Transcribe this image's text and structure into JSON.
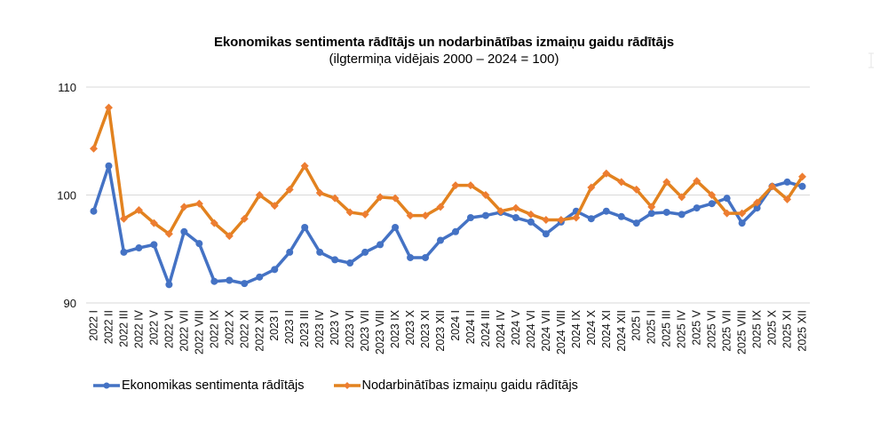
{
  "chart_data": {
    "type": "line",
    "title": "Ekonomikas sentimenta rādītājs un nodarbinātības izmaiņu gaidu rādītājs",
    "subtitle": "(ilgtermiņa vidējais 2000 – 2024 = 100)",
    "xlabel": "",
    "ylabel": "",
    "ylim": [
      90,
      110
    ],
    "yticks": [
      "90",
      "100",
      "110"
    ],
    "grid": true,
    "legend_position": "bottom",
    "categories": [
      "2022 I",
      "2022 II",
      "2022 III",
      "2022 IV",
      "2022 V",
      "2022 VI",
      "2022 VII",
      "2022 VIII",
      "2022 IX",
      "2022 X",
      "2022 XI",
      "2022 XII",
      "2023 I",
      "2023 II",
      "2023 III",
      "2023 IV",
      "2023 V",
      "2023 VI",
      "2023 VII",
      "2023 VIII",
      "2023 IX",
      "2023 X",
      "2023 XI",
      "2023 XII",
      "2024 I",
      "2024 II",
      "2024 III",
      "2024 IV",
      "2024 V",
      "2024 VI",
      "2024 VII",
      "2024 VIII",
      "2024 IX",
      "2024 X",
      "2024 XI",
      "2024 XII",
      "2025 I",
      "2025 II",
      "2025 III",
      "2025 IV",
      "2025 V",
      "2025 VI",
      "2025 VII",
      "2025 VIII",
      "2025 IX",
      "2025 X",
      "2025 XI",
      "2025 XII"
    ],
    "series": [
      {
        "name": "Ekonomikas sentimenta rādītājs",
        "color": "#4472C4",
        "marker": "circle",
        "values": [
          98.5,
          102.7,
          94.7,
          95.1,
          95.4,
          91.7,
          96.6,
          95.5,
          92.0,
          92.1,
          91.8,
          92.4,
          93.1,
          94.7,
          97.0,
          94.7,
          94.0,
          93.7,
          94.7,
          95.4,
          97.0,
          94.2,
          94.2,
          95.8,
          96.6,
          97.9,
          98.1,
          98.4,
          97.9,
          97.5,
          96.4,
          97.5,
          98.5,
          97.8,
          98.5,
          98.0,
          97.4,
          98.3,
          98.4,
          98.2,
          98.8,
          99.2,
          99.7,
          97.4,
          98.8,
          100.8,
          101.2,
          100.8
        ]
      },
      {
        "name": "Nodarbinātības izmaiņu gaidu rādītājs",
        "color": "#E2821F",
        "marker": "diamond",
        "values": [
          104.3,
          108.1,
          97.8,
          98.6,
          97.4,
          96.4,
          98.9,
          99.2,
          97.4,
          96.2,
          97.8,
          100.0,
          99.0,
          100.5,
          102.7,
          100.2,
          99.7,
          98.4,
          98.2,
          99.8,
          99.7,
          98.1,
          98.1,
          98.9,
          100.9,
          100.9,
          100.0,
          98.5,
          98.8,
          98.2,
          97.7,
          97.7,
          97.9,
          100.7,
          102.0,
          101.2,
          100.5,
          98.9,
          101.2,
          99.8,
          101.3,
          100.0,
          98.3,
          98.3,
          99.3,
          100.8,
          99.6,
          101.7
        ]
      }
    ]
  }
}
